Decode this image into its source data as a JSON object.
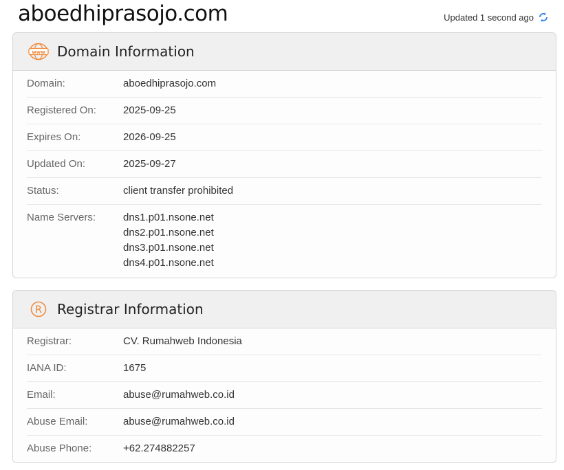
{
  "page": {
    "title": "aboedhiprasojo.com",
    "updated": "Updated 1 second ago",
    "icons": {
      "refresh": "refresh-icon",
      "www": "www-globe-icon",
      "registrar": "registered-icon"
    },
    "colors": {
      "accent": "#f08a3c",
      "refresh": "#3b8beb"
    }
  },
  "domain": {
    "title": "Domain Information",
    "rows": [
      {
        "label": "Domain:",
        "value": "aboedhiprasojo.com"
      },
      {
        "label": "Registered On:",
        "value": "2025-09-25"
      },
      {
        "label": "Expires On:",
        "value": "2026-09-25"
      },
      {
        "label": "Updated On:",
        "value": "2025-09-27"
      },
      {
        "label": "Status:",
        "value": "client transfer prohibited"
      }
    ],
    "nameservers": {
      "label": "Name Servers:",
      "values": [
        "dns1.p01.nsone.net",
        "dns2.p01.nsone.net",
        "dns3.p01.nsone.net",
        "dns4.p01.nsone.net"
      ]
    }
  },
  "registrar": {
    "title": "Registrar Information",
    "rows": [
      {
        "label": "Registrar:",
        "value": "CV. Rumahweb Indonesia"
      },
      {
        "label": "IANA ID:",
        "value": "1675"
      },
      {
        "label": "Email:",
        "value": "abuse@rumahweb.co.id"
      },
      {
        "label": "Abuse Email:",
        "value": "abuse@rumahweb.co.id"
      },
      {
        "label": "Abuse Phone:",
        "value": "+62.274882257"
      }
    ]
  }
}
